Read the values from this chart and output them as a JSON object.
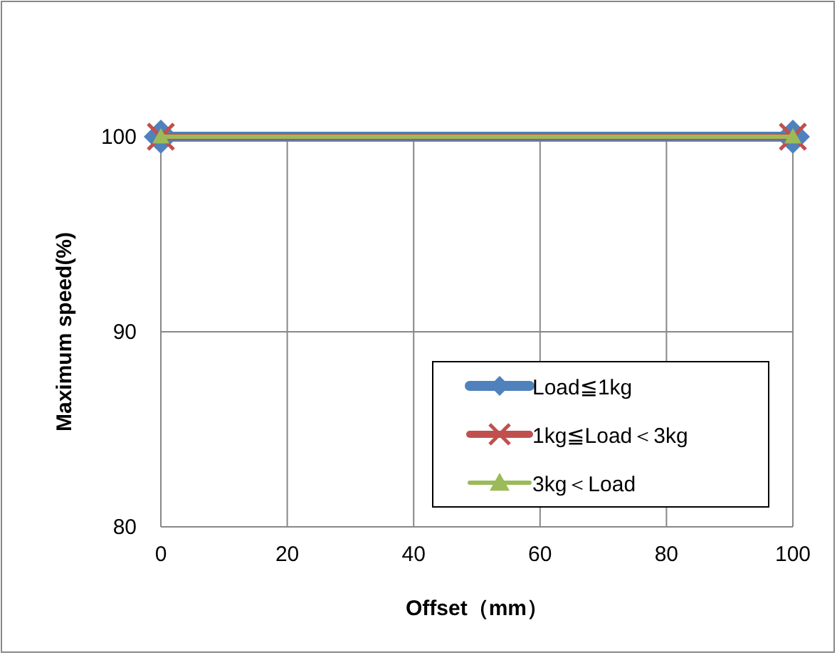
{
  "chart_data": {
    "type": "line",
    "xlabel": "Offset（mm）",
    "ylabel": "Maximum speed(%)",
    "x": [
      0,
      100
    ],
    "xlim": [
      0,
      100
    ],
    "xticks": [
      0,
      20,
      40,
      60,
      80,
      100
    ],
    "ylim": [
      80,
      100
    ],
    "yticks": [
      80,
      90,
      100
    ],
    "grid": true,
    "legend": "bottom right",
    "series": [
      {
        "name": "Load≦1kg",
        "color": "#4f81bd",
        "marker": "diamond",
        "values": [
          100,
          100
        ]
      },
      {
        "name": "1kg≦Load＜3kg",
        "color": "#c0504d",
        "marker": "cross",
        "values": [
          100,
          100
        ]
      },
      {
        "name": "3kg＜Load",
        "color": "#9bbb59",
        "marker": "triangle",
        "values": [
          100,
          100
        ]
      }
    ]
  }
}
